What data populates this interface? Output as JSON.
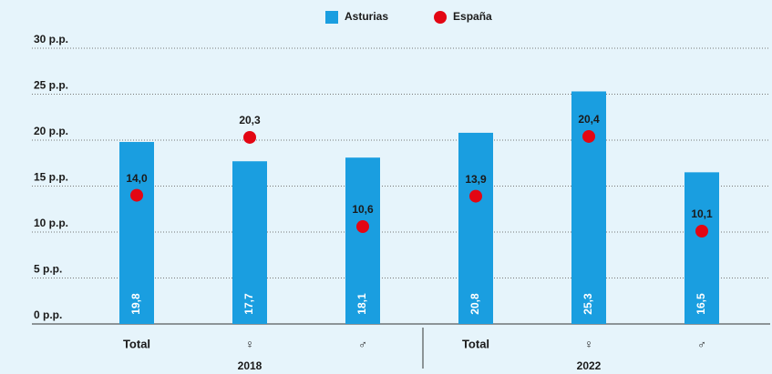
{
  "chart_data": {
    "type": "bar",
    "categories": [
      "Total",
      "♀",
      "♂",
      "Total",
      "♀",
      "♂"
    ],
    "group_labels": [
      "2018",
      "2022"
    ],
    "series": [
      {
        "name": "Asturias",
        "type": "bar",
        "color": "#1a9ee0",
        "values": [
          19.8,
          17.7,
          18.1,
          20.8,
          25.3,
          16.5
        ],
        "value_labels": [
          "19,8",
          "17,7",
          "18,1",
          "20,8",
          "25,3",
          "16,5"
        ]
      },
      {
        "name": "España",
        "type": "scatter",
        "color": "#e30613",
        "values": [
          14.0,
          20.3,
          10.6,
          13.9,
          20.4,
          10.1
        ],
        "value_labels": [
          "14,0",
          "20,3",
          "10,6",
          "13,9",
          "20,4",
          "10,1"
        ]
      }
    ],
    "ylim": [
      0,
      30
    ],
    "yticks": [
      {
        "value": 0,
        "label": "0 p.p."
      },
      {
        "value": 5,
        "label": "5 p.p."
      },
      {
        "value": 10,
        "label": "10 p.p."
      },
      {
        "value": 15,
        "label": "15 p.p."
      },
      {
        "value": 20,
        "label": "20 p.p."
      },
      {
        "value": 25,
        "label": "25 p.p."
      },
      {
        "value": 30,
        "label": "30 p.p."
      }
    ],
    "grid": true,
    "legend": "top"
  }
}
